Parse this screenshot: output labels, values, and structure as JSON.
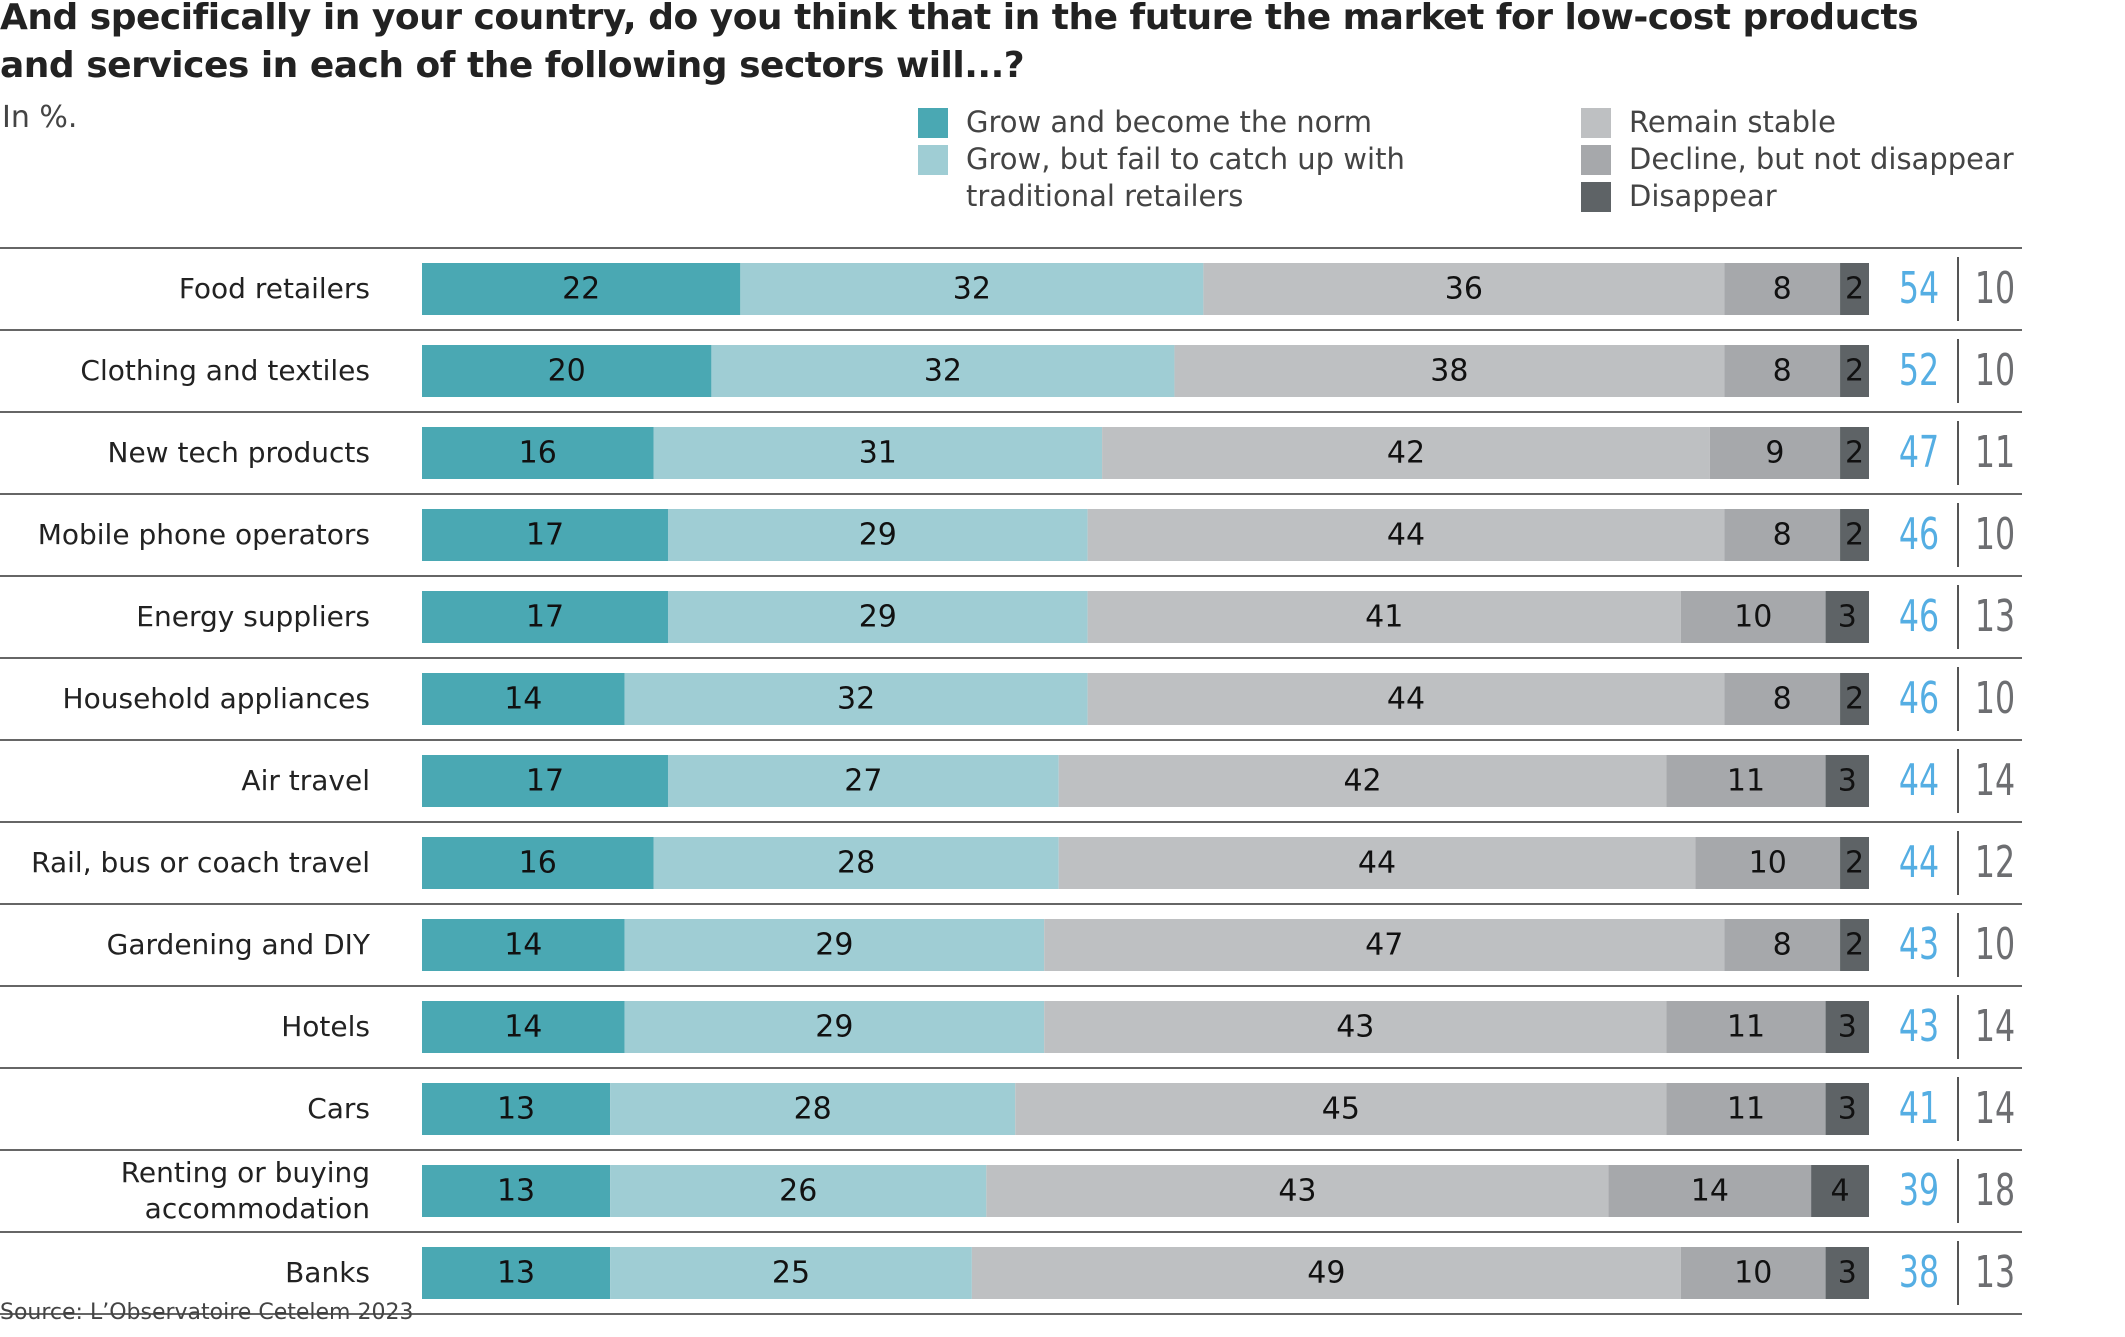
{
  "chart_data": {
    "type": "stacked-bar",
    "title": "And specifically in your country, do you think that in the future the market for low-cost products and services in each of the following sectors will...?",
    "subtitle": "In %.",
    "source": "Source: L’Observatoire Cetelem 2023",
    "categories": [
      "Food retailers",
      "Clothing and textiles",
      "New tech products",
      "Mobile phone operators",
      "Energy suppliers",
      "Household appliances",
      "Air travel",
      "Rail, bus or coach travel",
      "Gardening and DIY",
      "Hotels",
      "Cars",
      "Renting or buying accommodation",
      "Banks"
    ],
    "xlim": [
      0,
      100
    ],
    "series": [
      {
        "name": "Grow and become the norm",
        "color": "#4aa8b3",
        "values": [
          22,
          20,
          16,
          17,
          17,
          14,
          17,
          16,
          14,
          14,
          13,
          13,
          13
        ]
      },
      {
        "name": "Grow, but fail to catch up with traditional retailers",
        "color": "#9fcdd4",
        "values": [
          32,
          32,
          31,
          29,
          29,
          32,
          27,
          28,
          29,
          29,
          28,
          26,
          25
        ]
      },
      {
        "name": "Remain stable",
        "color": "#bec0c2",
        "values": [
          36,
          38,
          42,
          44,
          41,
          44,
          42,
          44,
          47,
          43,
          45,
          43,
          49
        ]
      },
      {
        "name": "Decline, but not disappear",
        "color": "#a6a8ab",
        "values": [
          8,
          8,
          9,
          8,
          10,
          8,
          11,
          10,
          8,
          11,
          11,
          14,
          10
        ]
      },
      {
        "name": "Disappear",
        "color": "#5e6366",
        "values": [
          2,
          2,
          2,
          2,
          3,
          2,
          3,
          2,
          2,
          3,
          3,
          4,
          3
        ]
      }
    ],
    "totals": [
      {
        "color": "#55aee3",
        "values": [
          54,
          52,
          47,
          46,
          46,
          46,
          44,
          44,
          43,
          43,
          41,
          39,
          38
        ]
      },
      {
        "color": "#6d6e71",
        "values": [
          10,
          10,
          11,
          10,
          13,
          10,
          14,
          12,
          10,
          14,
          14,
          18,
          13
        ]
      }
    ]
  }
}
